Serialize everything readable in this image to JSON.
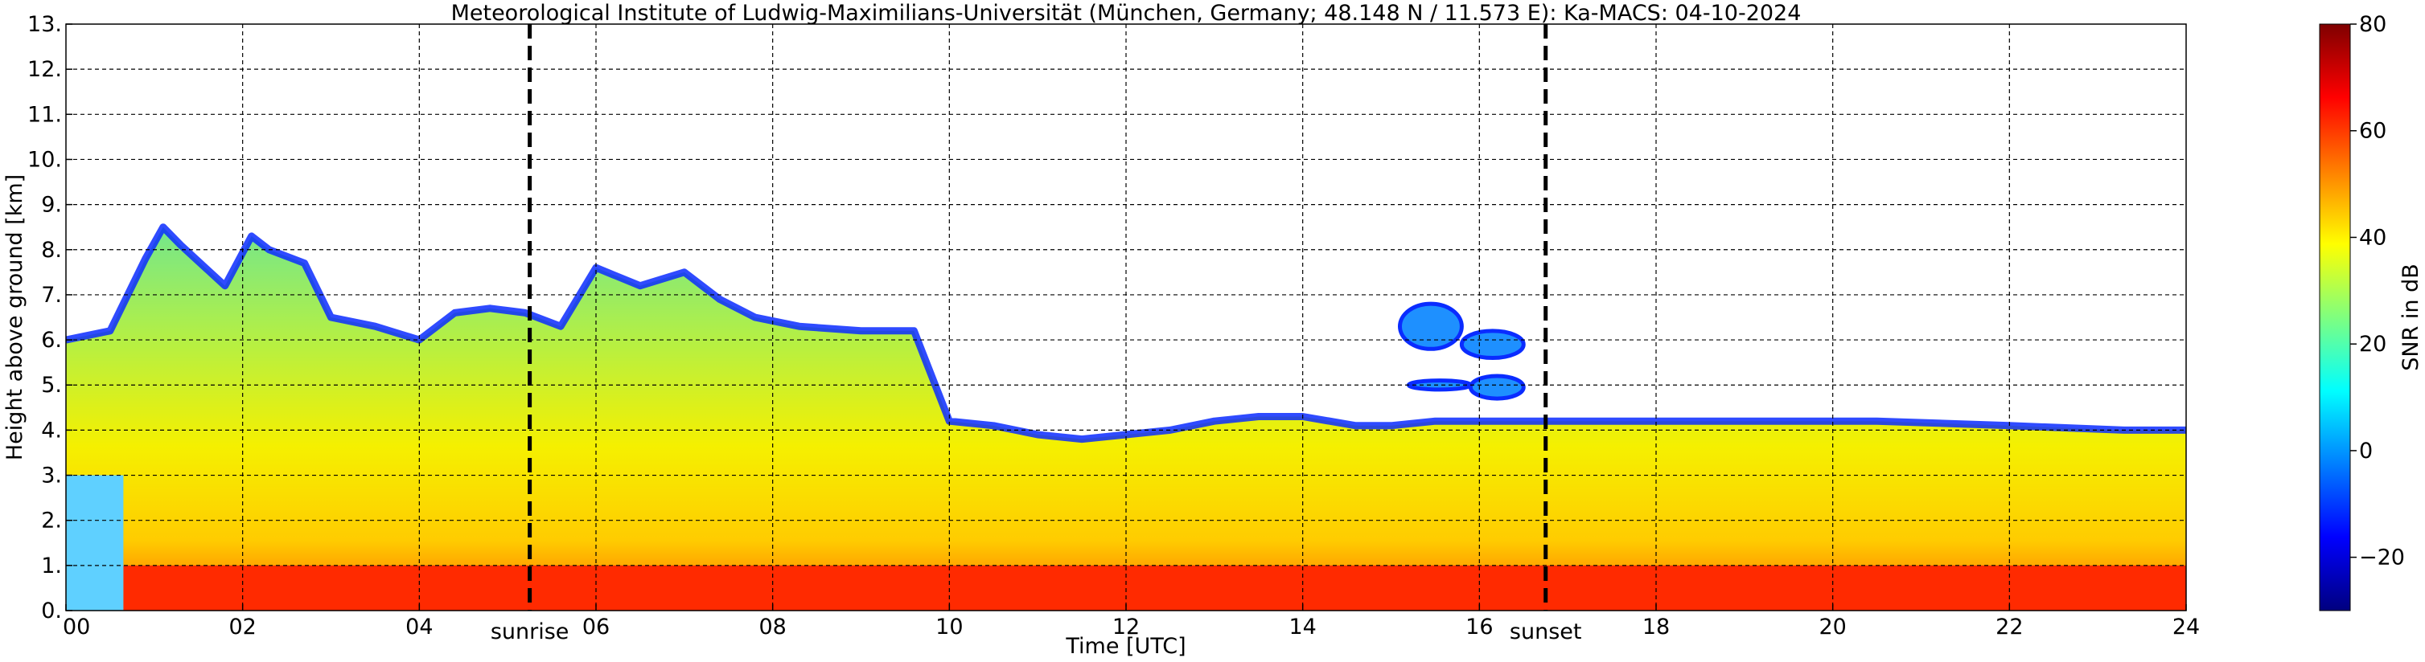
{
  "chart_data": {
    "type": "heatmap",
    "title": "Meteorological Institute of Ludwig-Maximilians-Universität (München, Germany; 48.148 N / 11.573 E):    Ka-MACS: 04-10-2024",
    "xlabel": "Time [UTC]",
    "ylabel": "Height above ground [km]",
    "xlim": [
      0,
      24
    ],
    "ylim": [
      0,
      13
    ],
    "x_ticks": [
      "00",
      "02",
      "04",
      "06",
      "08",
      "10",
      "12",
      "14",
      "16",
      "18",
      "20",
      "22",
      "24"
    ],
    "x_tick_values": [
      0,
      2,
      4,
      6,
      8,
      10,
      12,
      14,
      16,
      18,
      20,
      22,
      24
    ],
    "y_ticks": [
      "0.",
      "1.",
      "2.",
      "3.",
      "4.",
      "5.",
      "6.",
      "7.",
      "8.",
      "9.",
      "10.",
      "11.",
      "12.",
      "13."
    ],
    "y_tick_values": [
      0,
      1,
      2,
      3,
      4,
      5,
      6,
      7,
      8,
      9,
      10,
      11,
      12,
      13
    ],
    "grid": true,
    "colorbar": {
      "label": "SNR in dB",
      "range": [
        -30,
        80
      ],
      "ticks": [
        "80",
        "60",
        "40",
        "20",
        "0",
        "−20"
      ],
      "tick_values": [
        80,
        60,
        40,
        20,
        0,
        -20
      ],
      "colors": [
        "#00007f",
        "#0000ff",
        "#007fff",
        "#00ffff",
        "#7fff7f",
        "#ffff00",
        "#ff7f00",
        "#ff0000",
        "#7f0000"
      ]
    },
    "annotations": [
      {
        "label": "sunrise",
        "time": 5.25
      },
      {
        "label": "sunset",
        "time": 16.75
      }
    ],
    "echo_top_km": {
      "time": [
        0,
        0.5,
        0.9,
        1.1,
        1.3,
        1.8,
        2.1,
        2.3,
        2.7,
        3.0,
        3.5,
        4.0,
        4.4,
        4.8,
        5.2,
        5.6,
        6.0,
        6.5,
        7.0,
        7.4,
        7.8,
        8.3,
        9.0,
        9.6,
        10.0,
        10.5,
        11.0,
        11.5,
        12.0,
        12.5,
        13.0,
        13.5,
        14.0,
        14.6,
        15.0,
        15.5,
        16.5,
        17.5,
        19.0,
        20.5,
        22.0,
        23.3,
        24.0
      ],
      "height": [
        6.0,
        6.2,
        7.8,
        8.5,
        8.1,
        7.2,
        8.3,
        8.0,
        7.7,
        6.5,
        6.3,
        6.0,
        6.6,
        6.7,
        6.6,
        6.3,
        7.6,
        7.2,
        7.5,
        6.9,
        6.5,
        6.3,
        6.2,
        6.2,
        4.2,
        4.1,
        3.9,
        3.8,
        3.9,
        4.0,
        4.2,
        4.3,
        4.3,
        4.1,
        4.1,
        4.2,
        4.2,
        4.2,
        4.2,
        4.2,
        4.1,
        4.0,
        4.0
      ]
    },
    "strong_echo_top_km": 1.0,
    "strong_echo_start_time": 0.65,
    "elevated_cells": [
      {
        "time": [
          15.1,
          15.8
        ],
        "height": [
          5.8,
          6.8
        ]
      },
      {
        "time": [
          15.8,
          16.5
        ],
        "height": [
          5.6,
          6.2
        ]
      },
      {
        "time": [
          15.2,
          15.9
        ],
        "height": [
          4.9,
          5.1
        ]
      },
      {
        "time": [
          15.9,
          16.5
        ],
        "height": [
          4.7,
          5.2
        ]
      }
    ]
  }
}
